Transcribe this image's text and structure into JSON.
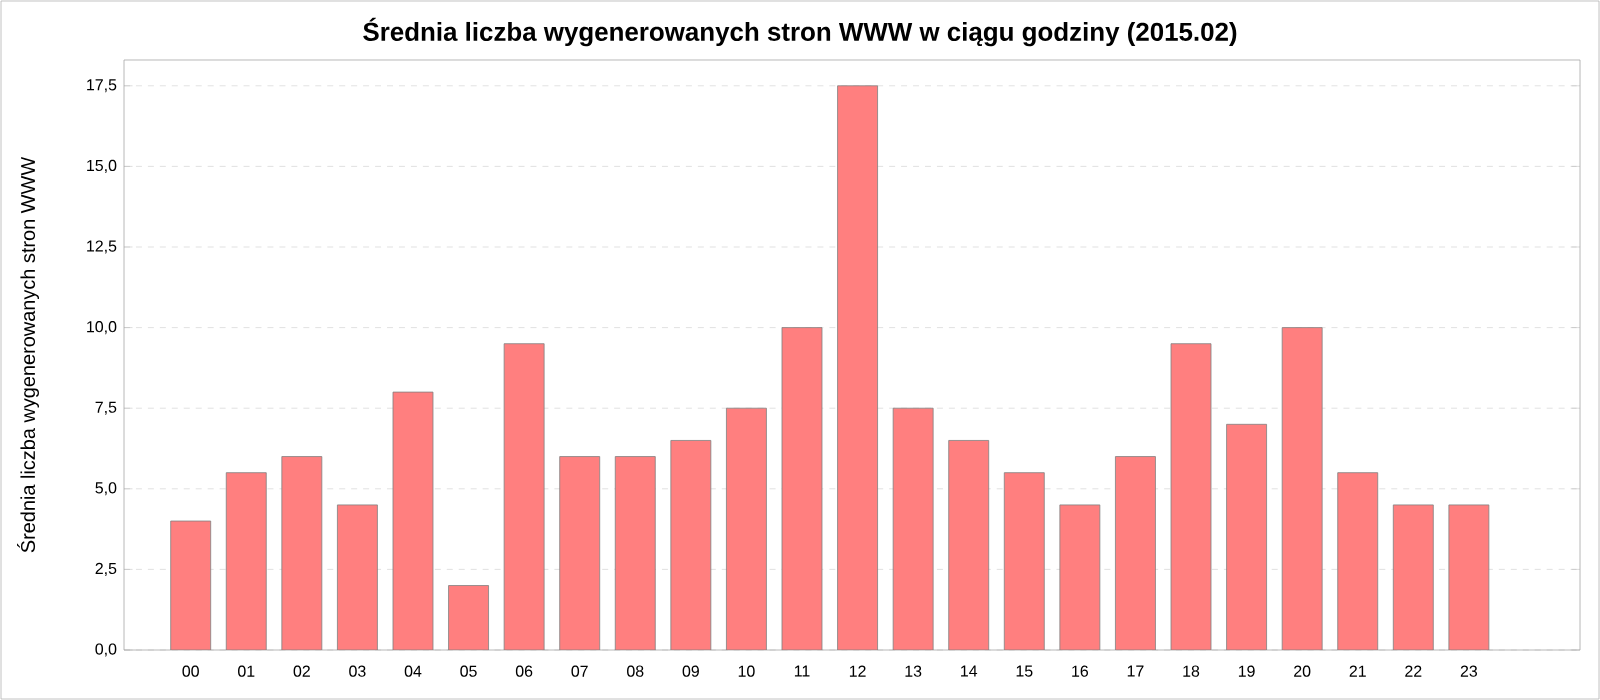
{
  "chart_data": {
    "type": "bar",
    "title": "Średnia liczba wygenerowanych stron WWW w ciągu godziny (2015.02)",
    "ylabel": "Średnia liczba wygenerowanych stron WWW",
    "categories": [
      "00",
      "01",
      "02",
      "03",
      "04",
      "05",
      "06",
      "07",
      "08",
      "09",
      "10",
      "11",
      "12",
      "13",
      "14",
      "15",
      "16",
      "17",
      "18",
      "19",
      "20",
      "21",
      "22",
      "23"
    ],
    "values": [
      4.0,
      5.5,
      6.0,
      4.5,
      8.0,
      2.0,
      9.5,
      6.0,
      6.0,
      6.5,
      7.5,
      10.0,
      17.5,
      7.5,
      6.5,
      5.5,
      4.5,
      6.0,
      9.5,
      7.0,
      10.0,
      5.5,
      4.5,
      4.5
    ],
    "color": "#ff7f7f",
    "ylim": [
      0,
      18.3
    ],
    "yticks": [
      {
        "value": 0,
        "label": "0,0"
      },
      {
        "value": 2.5,
        "label": "2,5"
      },
      {
        "value": 5,
        "label": "5,0"
      },
      {
        "value": 7.5,
        "label": "7,5"
      },
      {
        "value": 10,
        "label": "10,0"
      },
      {
        "value": 12.5,
        "label": "12,5"
      },
      {
        "value": 15,
        "label": "15,0"
      },
      {
        "value": 17.5,
        "label": "17,5"
      }
    ],
    "grid": "y"
  }
}
